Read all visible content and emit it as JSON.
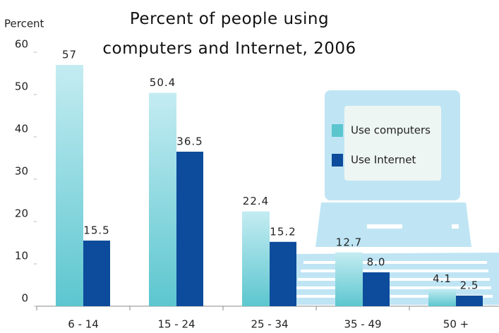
{
  "chart_data": {
    "type": "bar",
    "title": "Percent of people using computers and Internet, 2006",
    "y_label": "Percent",
    "categories": [
      "6 - 14",
      "15 - 24",
      "25 - 34",
      "35 - 49",
      "50 +"
    ],
    "series": [
      {
        "name": "Use computers",
        "color": "#5cc6cf",
        "values": [
          57,
          50.4,
          22.4,
          12.7,
          4.1
        ]
      },
      {
        "name": "Use Internet",
        "color": "#0d4c9c",
        "values": [
          15.5,
          36.5,
          15.2,
          8.0,
          2.5
        ],
        "value_labels": [
          "15.5",
          "36.5",
          "15.2",
          "8.0",
          "2.5"
        ]
      }
    ],
    "ylim": [
      0,
      60
    ],
    "yticks": [
      0,
      10,
      20,
      30,
      40,
      50,
      60
    ],
    "legend_position": "upper-right"
  }
}
